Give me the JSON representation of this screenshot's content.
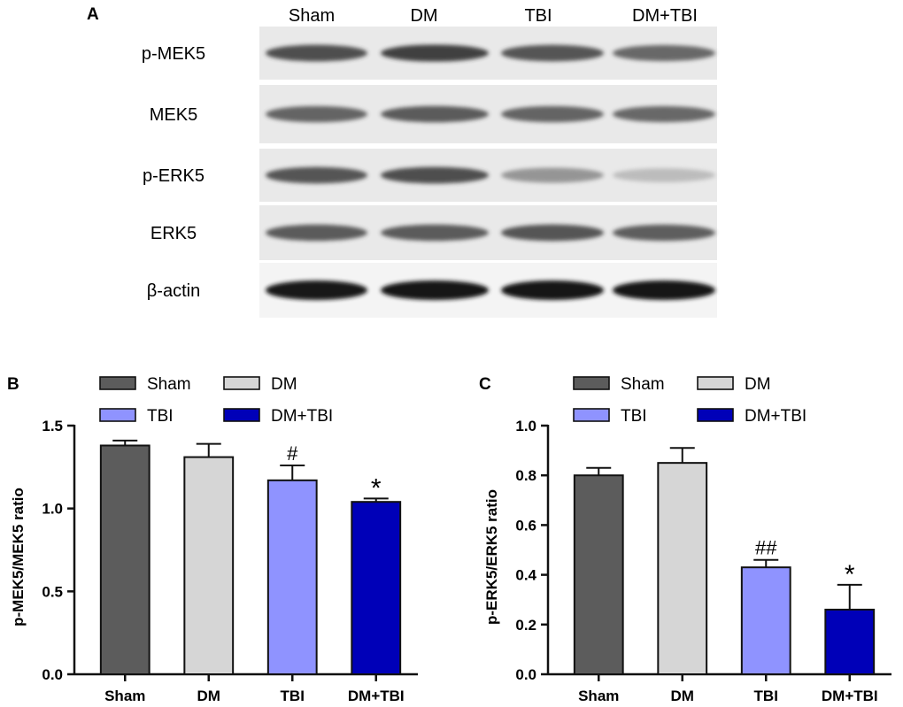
{
  "panel_a": {
    "label": "A",
    "lanes": [
      "Sham",
      "DM",
      "TBI",
      "DM+TBI"
    ],
    "rows": [
      {
        "label": "p-MEK5",
        "band_intensity": [
          0.8,
          0.85,
          0.78,
          0.7
        ]
      },
      {
        "label": "MEK5",
        "band_intensity": [
          0.72,
          0.75,
          0.72,
          0.7
        ]
      },
      {
        "label": "p-ERK5",
        "band_intensity": [
          0.78,
          0.8,
          0.5,
          0.28
        ]
      },
      {
        "label": "ERK5",
        "band_intensity": [
          0.75,
          0.75,
          0.78,
          0.74
        ]
      },
      {
        "label": "β-actin",
        "band_intensity": [
          0.98,
          1.0,
          1.0,
          1.0
        ]
      }
    ]
  },
  "chart_data": [
    {
      "panel_label": "B",
      "type": "bar",
      "title": "",
      "categories": [
        "Sham",
        "DM",
        "TBI",
        "DM+TBI"
      ],
      "values": [
        1.38,
        1.31,
        1.17,
        1.04
      ],
      "errors": [
        0.03,
        0.08,
        0.09,
        0.02
      ],
      "annotations": [
        "",
        "",
        "#",
        "*"
      ],
      "colors": [
        "#5c5c5c",
        "#d6d6d6",
        "#8f93ff",
        "#0000b8"
      ],
      "xlabel": "",
      "ylabel": "p-MEK5/MEK5 ratio",
      "ylim": [
        0,
        1.5
      ],
      "yticks": [
        0.0,
        0.5,
        1.0,
        1.5
      ],
      "ytick_labels": [
        "0.0",
        "0.5",
        "1.0",
        "1.5"
      ],
      "legend": [
        "Sham",
        "DM",
        "TBI",
        "DM+TBI"
      ],
      "legend_position": "top",
      "grid": false
    },
    {
      "panel_label": "C",
      "type": "bar",
      "title": "",
      "categories": [
        "Sham",
        "DM",
        "TBI",
        "DM+TBI"
      ],
      "values": [
        0.8,
        0.85,
        0.43,
        0.26
      ],
      "errors": [
        0.03,
        0.06,
        0.03,
        0.1
      ],
      "annotations": [
        "",
        "",
        "##",
        "*"
      ],
      "colors": [
        "#5c5c5c",
        "#d6d6d6",
        "#8f93ff",
        "#0000b8"
      ],
      "xlabel": "",
      "ylabel": "p-ERK5/ERK5 ratio",
      "ylim": [
        0,
        1.0
      ],
      "yticks": [
        0.0,
        0.2,
        0.4,
        0.6,
        0.8,
        1.0
      ],
      "ytick_labels": [
        "0.0",
        "0.2",
        "0.4",
        "0.6",
        "0.8",
        "1.0"
      ],
      "legend": [
        "Sham",
        "DM",
        "TBI",
        "DM+TBI"
      ],
      "legend_position": "top",
      "grid": false
    }
  ]
}
